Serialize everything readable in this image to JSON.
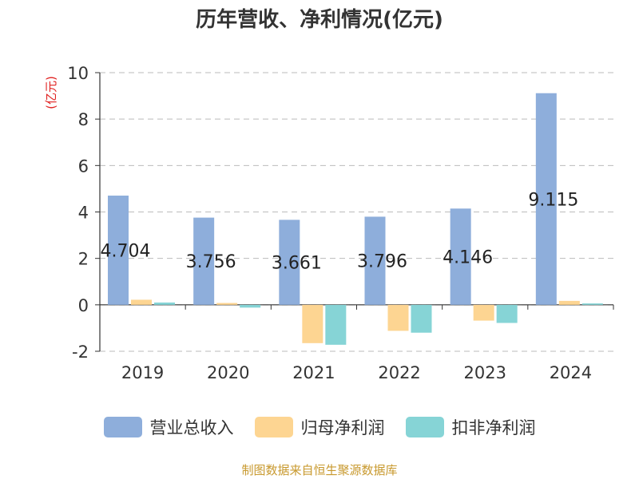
{
  "chart_data": {
    "type": "bar",
    "title": "历年营收、净利情况(亿元)",
    "ylabel": "(亿元)",
    "xlabel": "",
    "categories": [
      "2019",
      "2020",
      "2021",
      "2022",
      "2023",
      "2024"
    ],
    "ylim": [
      -2,
      10
    ],
    "yticks": [
      -2,
      0,
      2,
      4,
      6,
      8,
      10
    ],
    "grid": true,
    "legend_position": "bottom",
    "series": [
      {
        "name": "营业总收入",
        "color": "#8eaedb",
        "values": [
          4.704,
          3.756,
          3.661,
          3.796,
          4.146,
          9.115
        ],
        "labels": [
          "4.704",
          "3.756",
          "3.661",
          "3.796",
          "4.146",
          "9.115"
        ]
      },
      {
        "name": "归母净利润",
        "color": "#fdd592",
        "values": [
          0.22,
          0.08,
          -1.65,
          -1.12,
          -0.68,
          0.17
        ]
      },
      {
        "name": "扣非净利润",
        "color": "#86d4d6",
        "values": [
          0.1,
          -0.12,
          -1.72,
          -1.2,
          -0.78,
          0.06
        ]
      }
    ]
  },
  "footer": {
    "source": "制图数据来自恒生聚源数据库"
  }
}
